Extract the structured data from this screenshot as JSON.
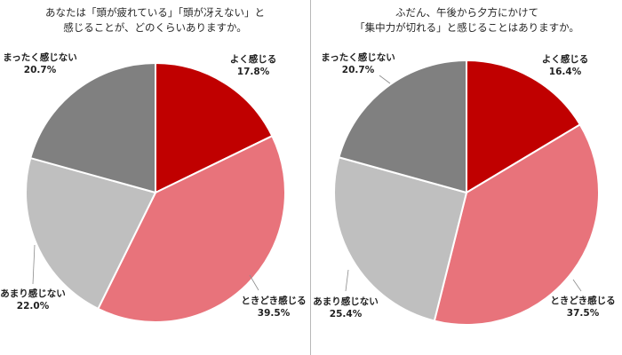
{
  "colors": {
    "よく感じる": "#c00000",
    "ときどき感じる": "#e8737b",
    "あまり感じない": "#bfbfbf",
    "まったく感じない": "#808080"
  },
  "chart_data": [
    {
      "type": "pie",
      "title": [
        "あなたは「頭が疲れている」「頭が冴えない」と",
        "感じることが、どのくらいありますか。"
      ],
      "categories": [
        "よく感じる",
        "ときどき感じる",
        "あまり感じない",
        "まったく感じない"
      ],
      "values": [
        17.8,
        39.5,
        22.0,
        20.7
      ],
      "labels": [
        "17.8%",
        "39.5%",
        "22.0%",
        "20.7%"
      ]
    },
    {
      "type": "pie",
      "title": [
        "ふだん、午後から夕方にかけて",
        "「集中力が切れる」と感じることはありますか。"
      ],
      "categories": [
        "よく感じる",
        "ときどき感じる",
        "あまり感じない",
        "まったく感じない"
      ],
      "values": [
        16.4,
        37.5,
        25.4,
        20.7
      ],
      "labels": [
        "16.4%",
        "37.5%",
        "25.4%",
        "20.7%"
      ]
    }
  ]
}
